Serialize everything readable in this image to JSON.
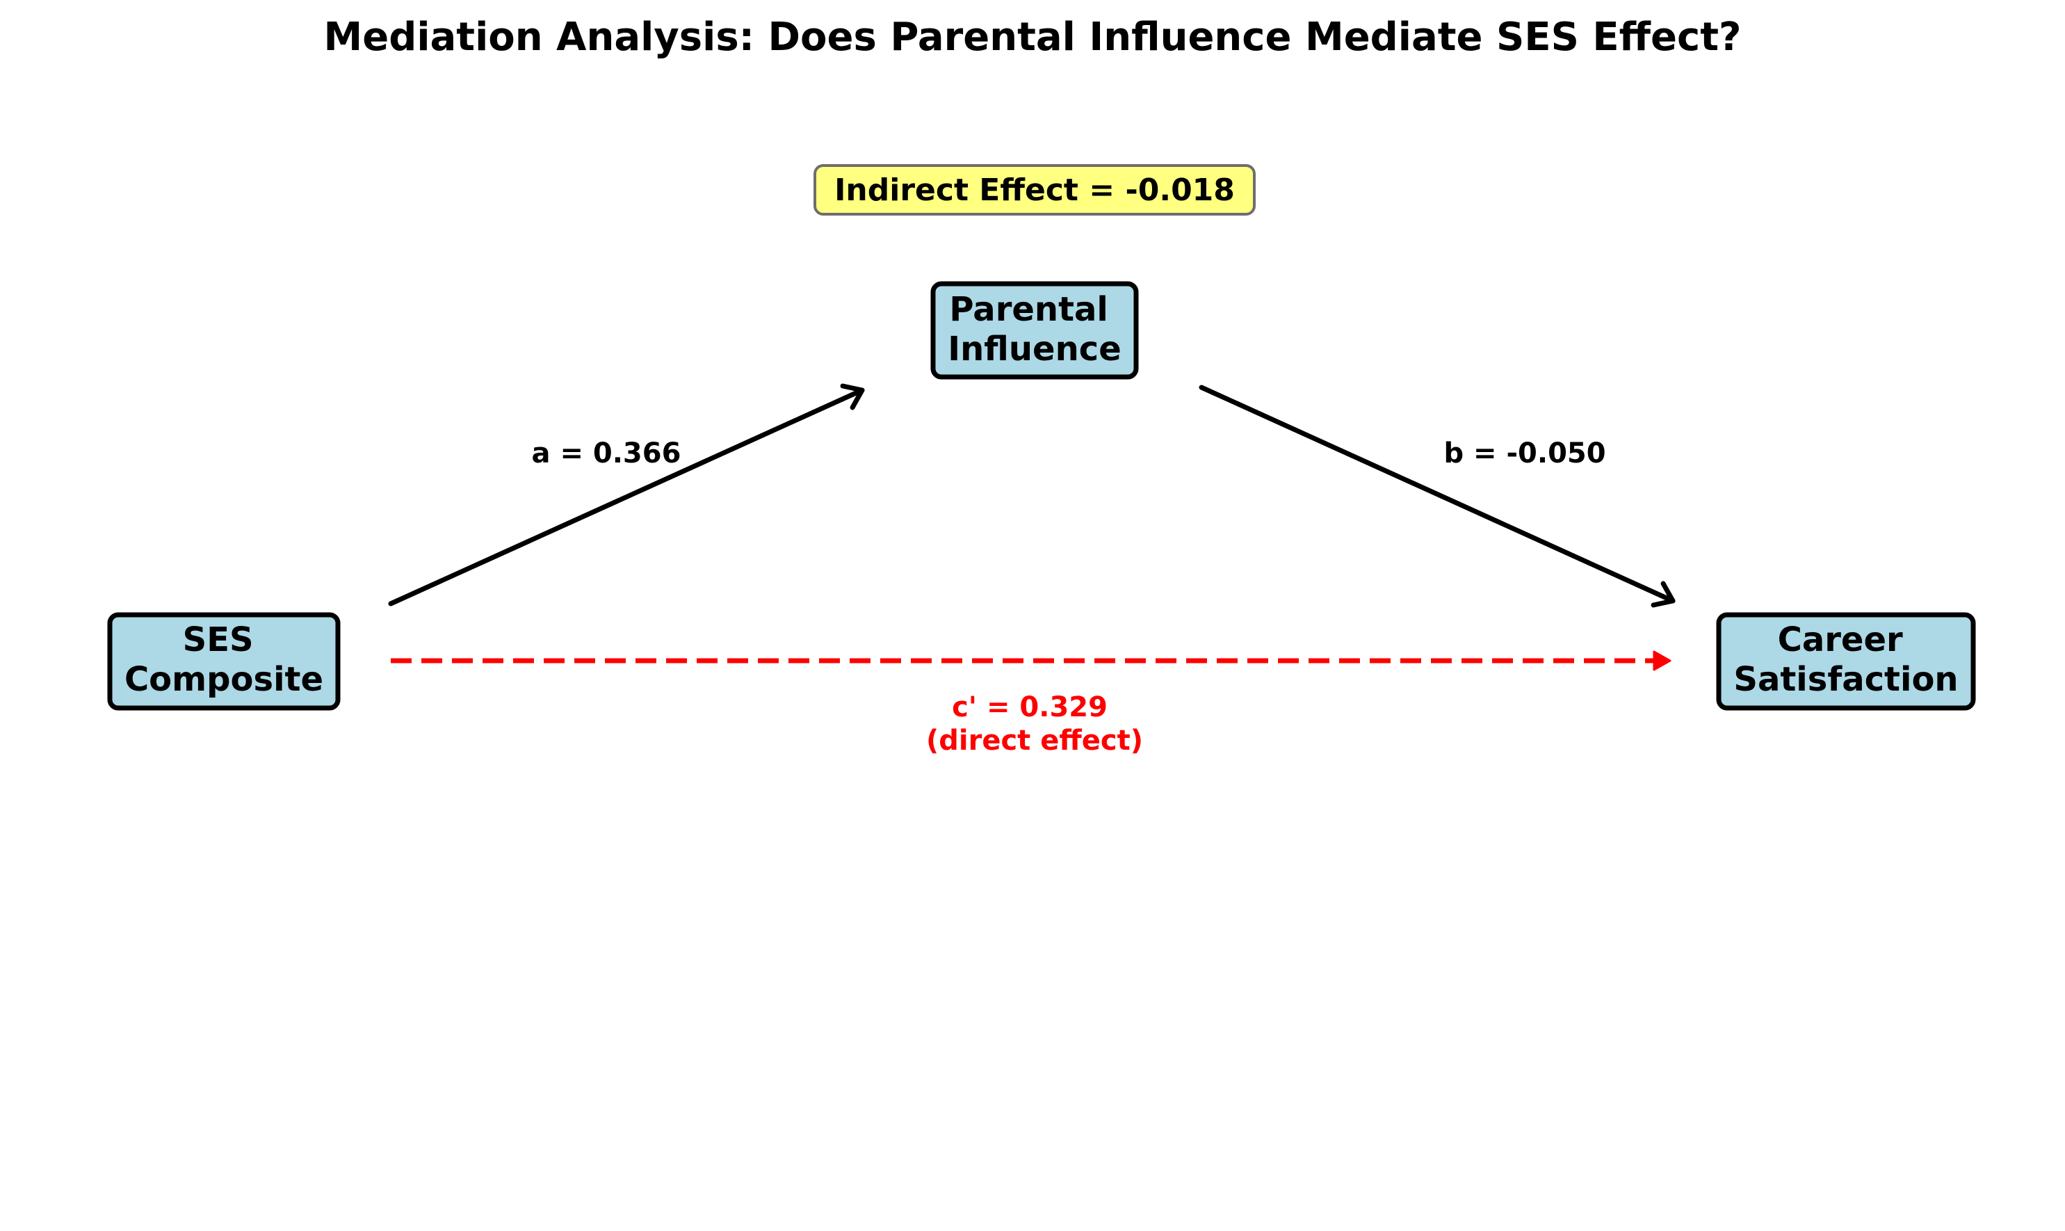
{
  "title": "Mediation Analysis: Does Parental Influence Mediate SES Effect?",
  "nodes": {
    "ses": {
      "line1": "SES",
      "line2": "Composite"
    },
    "parental": {
      "line1": "Parental",
      "line2": "Influence"
    },
    "career": {
      "line1": "Career",
      "line2": "Satisfaction"
    }
  },
  "paths": {
    "a": {
      "label": "a = 0.366",
      "coefficient": 0.366
    },
    "b": {
      "label": "b = -0.050",
      "coefficient": -0.05
    },
    "c_prime": {
      "label_line1": "c' = 0.329",
      "label_line2": "(direct effect)",
      "coefficient": 0.329
    }
  },
  "indirect_effect": {
    "label": "Indirect Effect = -0.018",
    "value": -0.018
  },
  "colors": {
    "node_fill": "#add8e6",
    "direct_path": "#ff0000",
    "mediated_path": "#000000",
    "indirect_box": "#ffff80"
  }
}
